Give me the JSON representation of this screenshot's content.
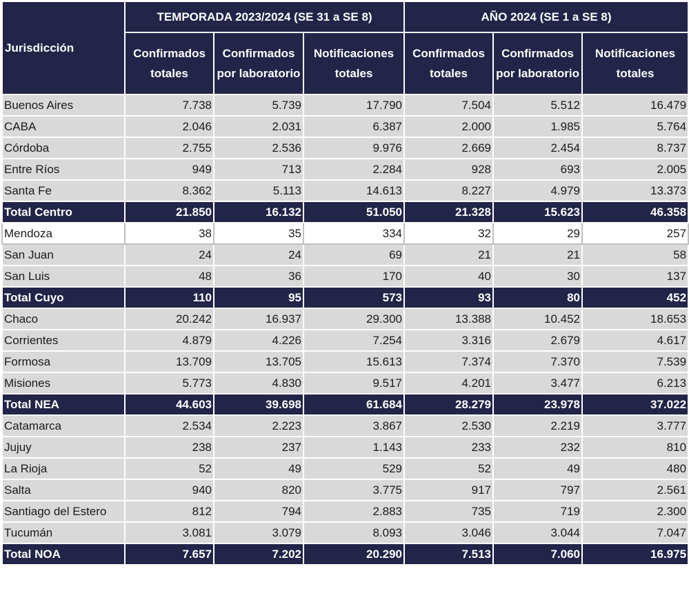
{
  "header": {
    "jurisdiccion": "Jurisdicción",
    "group1": "TEMPORADA 2023/2024 (SE 31 a SE 8)",
    "group2": "AÑO 2024 (SE 1 a SE 8)",
    "col_confirmados": "Confirmados totales",
    "col_laboratorio": "Confirmados por laboratorio",
    "col_notificaciones": "Notificaciones totales"
  },
  "rows": [
    {
      "name": "Buenos Aires",
      "v": [
        "7.738",
        "5.739",
        "17.790",
        "7.504",
        "5.512",
        "16.479"
      ]
    },
    {
      "name": "CABA",
      "v": [
        "2.046",
        "2.031",
        "6.387",
        "2.000",
        "1.985",
        "5.764"
      ]
    },
    {
      "name": "Córdoba",
      "v": [
        "2.755",
        "2.536",
        "9.976",
        "2.669",
        "2.454",
        "8.737"
      ]
    },
    {
      "name": "Entre Ríos",
      "v": [
        "949",
        "713",
        "2.284",
        "928",
        "693",
        "2.005"
      ]
    },
    {
      "name": "Santa Fe",
      "v": [
        "8.362",
        "5.113",
        "14.613",
        "8.227",
        "4.979",
        "13.373"
      ]
    },
    {
      "name": "Total Centro",
      "v": [
        "21.850",
        "16.132",
        "51.050",
        "21.328",
        "15.623",
        "46.358"
      ]
    },
    {
      "name": "Mendoza",
      "v": [
        "38",
        "35",
        "334",
        "32",
        "29",
        "257"
      ]
    },
    {
      "name": "San Juan",
      "v": [
        "24",
        "24",
        "69",
        "21",
        "21",
        "58"
      ]
    },
    {
      "name": "San Luis",
      "v": [
        "48",
        "36",
        "170",
        "40",
        "30",
        "137"
      ]
    },
    {
      "name": "Total Cuyo",
      "v": [
        "110",
        "95",
        "573",
        "93",
        "80",
        "452"
      ]
    },
    {
      "name": "Chaco",
      "v": [
        "20.242",
        "16.937",
        "29.300",
        "13.388",
        "10.452",
        "18.653"
      ]
    },
    {
      "name": "Corrientes",
      "v": [
        "4.879",
        "4.226",
        "7.254",
        "3.316",
        "2.679",
        "4.617"
      ]
    },
    {
      "name": "Formosa",
      "v": [
        "13.709",
        "13.705",
        "15.613",
        "7.374",
        "7.370",
        "7.539"
      ]
    },
    {
      "name": "Misiones",
      "v": [
        "5.773",
        "4.830",
        "9.517",
        "4.201",
        "3.477",
        "6.213"
      ]
    },
    {
      "name": "Total NEA",
      "v": [
        "44.603",
        "39.698",
        "61.684",
        "28.279",
        "23.978",
        "37.022"
      ]
    },
    {
      "name": "Catamarca",
      "v": [
        "2.534",
        "2.223",
        "3.867",
        "2.530",
        "2.219",
        "3.777"
      ]
    },
    {
      "name": "Jujuy",
      "v": [
        "238",
        "237",
        "1.143",
        "233",
        "232",
        "810"
      ]
    },
    {
      "name": "La Rioja",
      "v": [
        "52",
        "49",
        "529",
        "52",
        "49",
        "480"
      ]
    },
    {
      "name": "Salta",
      "v": [
        "940",
        "820",
        "3.775",
        "917",
        "797",
        "2.561"
      ]
    },
    {
      "name": "Santiago del Estero",
      "v": [
        "812",
        "794",
        "2.883",
        "735",
        "719",
        "2.300"
      ]
    },
    {
      "name": "Tucumán",
      "v": [
        "3.081",
        "3.079",
        "8.093",
        "3.046",
        "3.044",
        "7.047"
      ]
    },
    {
      "name": "Total NOA",
      "v": [
        "7.657",
        "7.202",
        "20.290",
        "7.513",
        "7.060",
        "16.975"
      ]
    }
  ]
}
